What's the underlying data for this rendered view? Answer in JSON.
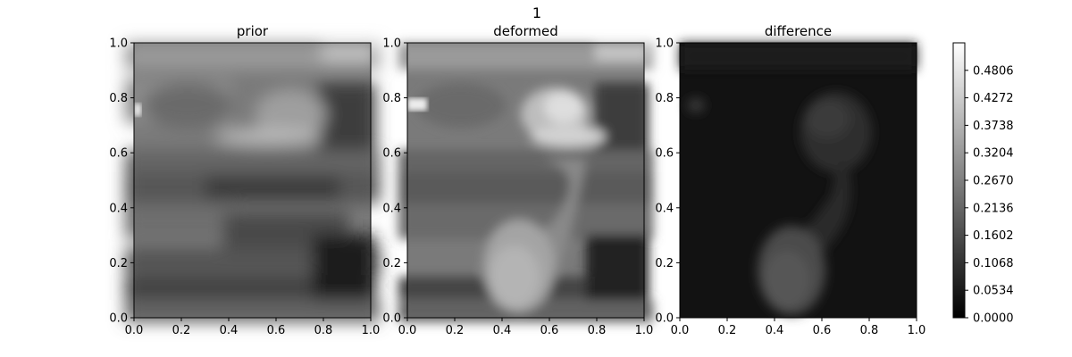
{
  "figure": {
    "suptitle": "1"
  },
  "colors": {
    "cmap_low": "#000000",
    "cmap_high": "#ffffff",
    "axis": "#000000",
    "background": "#ffffff"
  },
  "chart_data": [
    {
      "type": "heatmap",
      "title": "prior",
      "xlabel": "",
      "ylabel": "",
      "xlim": [
        0.0,
        1.0
      ],
      "ylim": [
        0.0,
        1.0
      ],
      "xticks": [
        "0.0",
        "0.2",
        "0.4",
        "0.6",
        "0.8",
        "1.0"
      ],
      "yticks": [
        "0.0",
        "0.2",
        "0.4",
        "0.6",
        "0.8",
        "1.0"
      ],
      "colormap": "gray",
      "grid": false
    },
    {
      "type": "heatmap",
      "title": "deformed",
      "xlabel": "",
      "ylabel": "",
      "xlim": [
        0.0,
        1.0
      ],
      "ylim": [
        0.0,
        1.0
      ],
      "xticks": [
        "0.0",
        "0.2",
        "0.4",
        "0.6",
        "0.8",
        "1.0"
      ],
      "yticks": [
        "0.0",
        "0.2",
        "0.4",
        "0.6",
        "0.8",
        "1.0"
      ],
      "colormap": "gray",
      "grid": false
    },
    {
      "type": "heatmap",
      "title": "difference",
      "xlabel": "",
      "ylabel": "",
      "xlim": [
        0.0,
        1.0
      ],
      "ylim": [
        0.0,
        1.0
      ],
      "xticks": [
        "0.0",
        "0.2",
        "0.4",
        "0.6",
        "0.8",
        "1.0"
      ],
      "yticks": [
        "0.0",
        "0.2",
        "0.4",
        "0.6",
        "0.8",
        "1.0"
      ],
      "colormap": "gray",
      "grid": false
    }
  ],
  "colorbar": {
    "range": [
      0.0,
      0.534
    ],
    "ticks": [
      0.0,
      0.0534,
      0.1068,
      0.1602,
      0.2136,
      0.267,
      0.3204,
      0.3738,
      0.4272,
      0.4806
    ],
    "tick_labels": [
      "0.0000",
      "0.0534",
      "0.1068",
      "0.1602",
      "0.2136",
      "0.2670",
      "0.3204",
      "0.3738",
      "0.4272",
      "0.4806"
    ]
  }
}
